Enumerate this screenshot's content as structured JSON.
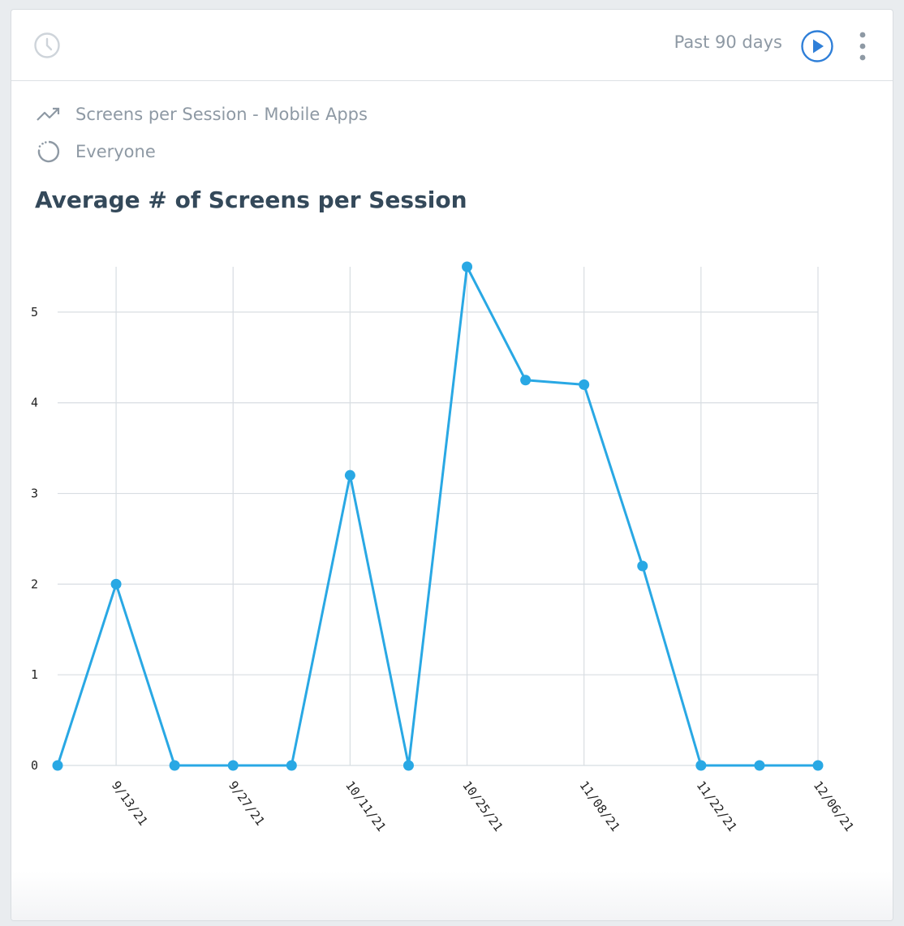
{
  "header": {
    "range_label": "Past 90 days",
    "icons": {
      "clock": "clock-icon",
      "play": "play-icon",
      "more": "more-vertical-icon"
    }
  },
  "meta": {
    "metric_label": "Screens per Session - Mobile Apps",
    "segment_label": "Everyone",
    "icons": {
      "metric": "trend-up-icon",
      "segment": "segment-circle-icon"
    }
  },
  "colors": {
    "series": "#29a8e4",
    "grid": "#d8dde2",
    "muted_text": "#8e99a4",
    "title": "#34495a",
    "accent": "#2f7fd8"
  },
  "chart_data": {
    "type": "line",
    "title": "Average # of Screens per Session",
    "x": [
      "9/06/21",
      "9/13/21",
      "9/20/21",
      "9/27/21",
      "10/04/21",
      "10/11/21",
      "10/18/21",
      "10/25/21",
      "11/01/21",
      "11/08/21",
      "11/15/21",
      "11/22/21",
      "11/29/21",
      "12/06/21"
    ],
    "x_tick_labels": [
      "9/13/21",
      "9/27/21",
      "10/11/21",
      "10/25/21",
      "11/08/21",
      "11/22/21",
      "12/06/21"
    ],
    "series": [
      {
        "name": "Everyone",
        "values": [
          0,
          2,
          0,
          0,
          0,
          3.2,
          0,
          5.5,
          4.25,
          4.2,
          2.2,
          0,
          0,
          0
        ]
      }
    ],
    "y_ticks": [
      0,
      1,
      2,
      3,
      4,
      5
    ],
    "ylim": [
      0,
      5.5
    ],
    "grid": true,
    "legend_position": "bottom-center"
  }
}
